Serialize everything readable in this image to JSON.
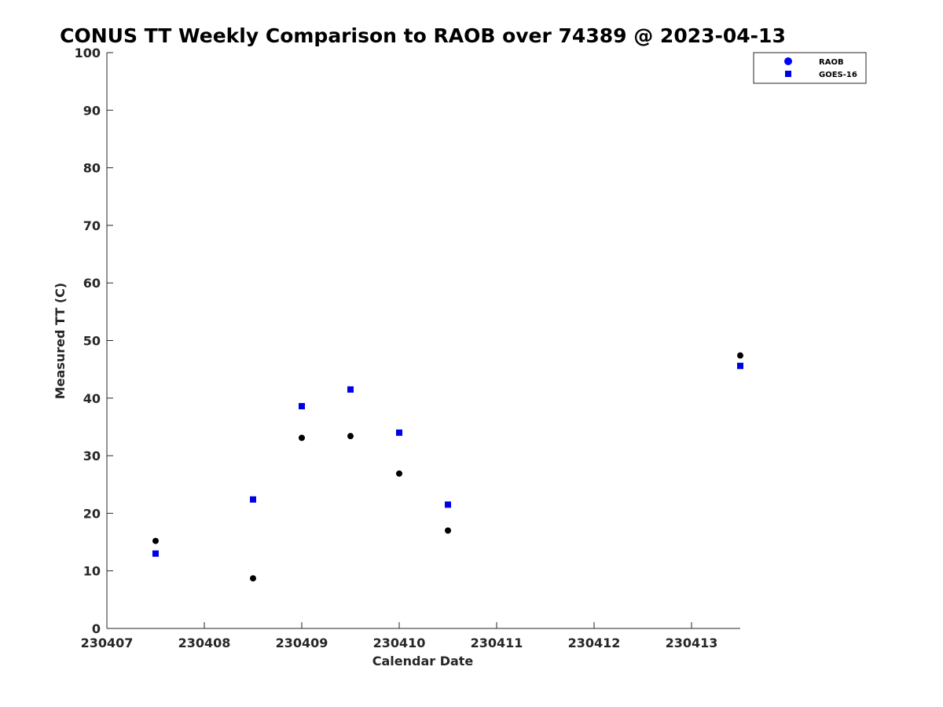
{
  "chart_data": {
    "type": "scatter",
    "title": "CONUS TT Weekly Comparison to RAOB over 74389 @ 2023-04-13",
    "xlabel": "Calendar Date",
    "ylabel": "Measured TT (C)",
    "xlim": [
      230407,
      230413.5
    ],
    "ylim": [
      0,
      100
    ],
    "x_ticks": [
      230407,
      230408,
      230409,
      230410,
      230411,
      230412,
      230413
    ],
    "x_tick_labels": [
      "230407",
      "230408",
      "230409",
      "230410",
      "230411",
      "230412",
      "230413"
    ],
    "y_ticks": [
      0,
      10,
      20,
      30,
      40,
      50,
      60,
      70,
      80,
      90,
      100
    ],
    "y_tick_labels": [
      "0",
      "10",
      "20",
      "30",
      "40",
      "50",
      "60",
      "70",
      "80",
      "90",
      "100"
    ],
    "grid": false,
    "legend_position": "top-right",
    "series": [
      {
        "name": "RAOB",
        "marker": "circle",
        "color": "#000000",
        "legend_color": "#0000ff",
        "points": [
          {
            "x": 230407.5,
            "y": 15.2
          },
          {
            "x": 230408.5,
            "y": 8.7
          },
          {
            "x": 230409.0,
            "y": 33.1
          },
          {
            "x": 230409.5,
            "y": 33.4
          },
          {
            "x": 230410.0,
            "y": 26.9
          },
          {
            "x": 230410.5,
            "y": 17.0
          },
          {
            "x": 230413.5,
            "y": 47.4
          }
        ]
      },
      {
        "name": "GOES-16",
        "marker": "square",
        "color": "#0000e6",
        "legend_color": "#0000e6",
        "points": [
          {
            "x": 230407.5,
            "y": 13.0
          },
          {
            "x": 230408.5,
            "y": 22.4
          },
          {
            "x": 230409.0,
            "y": 38.6
          },
          {
            "x": 230409.5,
            "y": 41.5
          },
          {
            "x": 230410.0,
            "y": 34.0
          },
          {
            "x": 230410.5,
            "y": 21.5
          },
          {
            "x": 230413.5,
            "y": 45.6
          }
        ]
      }
    ]
  }
}
